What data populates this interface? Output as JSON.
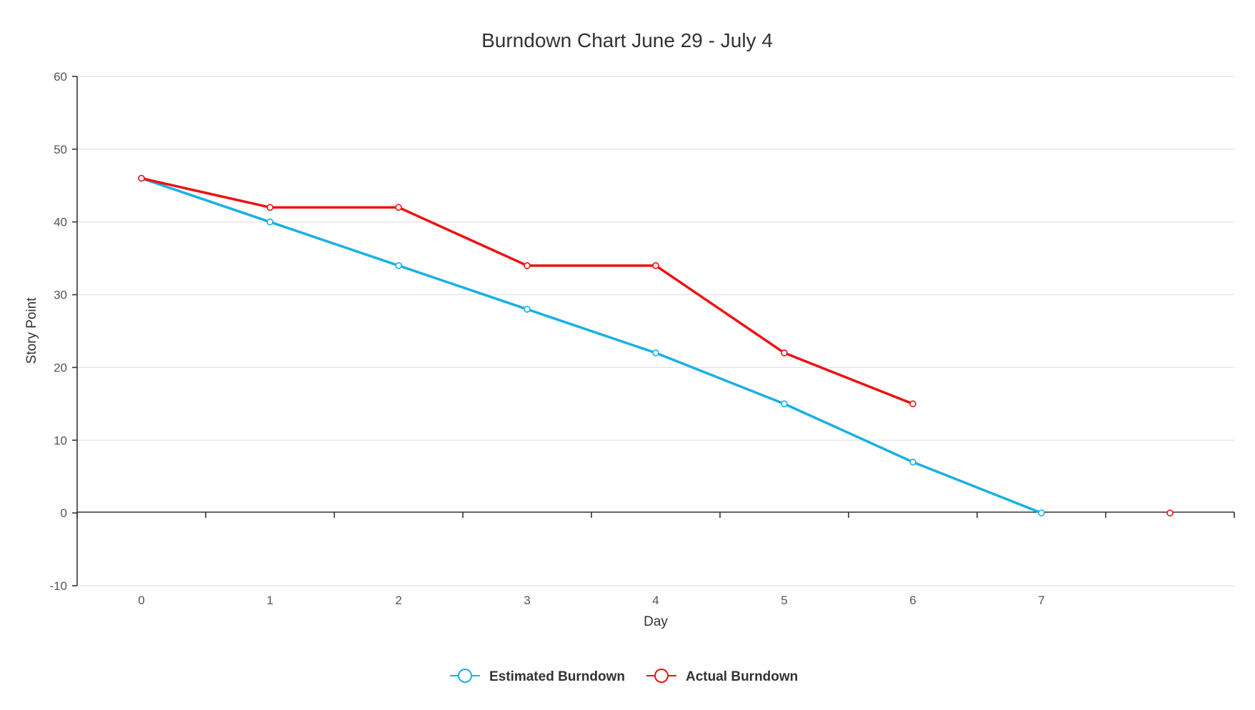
{
  "chart_data": {
    "type": "line",
    "title": "Burndown Chart June 29 - July 4",
    "xlabel": "Day",
    "ylabel": "Story Point",
    "xlim": [
      -0.5,
      8.5
    ],
    "ylim": [
      -10,
      60
    ],
    "x_ticks": [
      0,
      1,
      2,
      3,
      4,
      5,
      6,
      7
    ],
    "x_tick_labels": [
      "0",
      "1",
      "2",
      "3",
      "4",
      "5",
      "6",
      "7"
    ],
    "y_ticks": [
      -10,
      0,
      10,
      20,
      30,
      40,
      50,
      60
    ],
    "y_tick_labels": [
      "-10",
      "0",
      "10",
      "20",
      "30",
      "40",
      "50",
      "60"
    ],
    "grid": true,
    "legend_position": "bottom-center",
    "series": [
      {
        "name": "Estimated Burndown",
        "color": "#1aafe6",
        "x": [
          0,
          1,
          2,
          3,
          4,
          5,
          6,
          7
        ],
        "values": [
          46,
          40,
          34,
          28,
          22,
          15,
          7,
          0
        ]
      },
      {
        "name": "Actual Burndown",
        "color": "#ee1111",
        "x": [
          0,
          1,
          2,
          3,
          4,
          5,
          6,
          8
        ],
        "values": [
          46,
          42,
          42,
          34,
          34,
          22,
          15,
          0
        ],
        "connected_through_index": 6
      }
    ]
  }
}
